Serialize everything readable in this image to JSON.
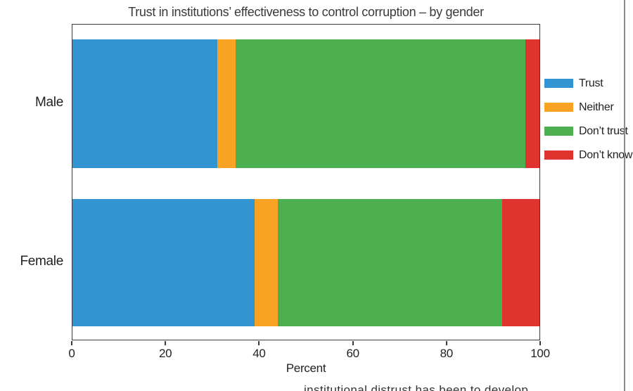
{
  "chart_data": {
    "type": "bar",
    "subtype": "horizontal-stacked",
    "title": "Trust in institutions’ effectiveness to control corruption – by gender",
    "categories": [
      "Male",
      "Female"
    ],
    "series": [
      {
        "name": "Trust",
        "color": "#3394d2",
        "values": [
          31,
          39
        ]
      },
      {
        "name": "Neither",
        "color": "#f9a325",
        "values": [
          4,
          5
        ]
      },
      {
        "name": "Don’t trust",
        "color": "#4caf50",
        "values": [
          62,
          48
        ]
      },
      {
        "name": "Don’t know",
        "color": "#e03330",
        "values": [
          3,
          8
        ]
      }
    ],
    "xlabel": "Percent",
    "ylabel": "",
    "xlim": [
      0,
      100
    ],
    "xticks": [
      0,
      20,
      40,
      60,
      80,
      100
    ],
    "grid": false,
    "legend_position": "right-outside",
    "axis_color": "#3a3a3a"
  },
  "page": {
    "clipped_text_fragment": "institutional distrust has been to develop"
  }
}
